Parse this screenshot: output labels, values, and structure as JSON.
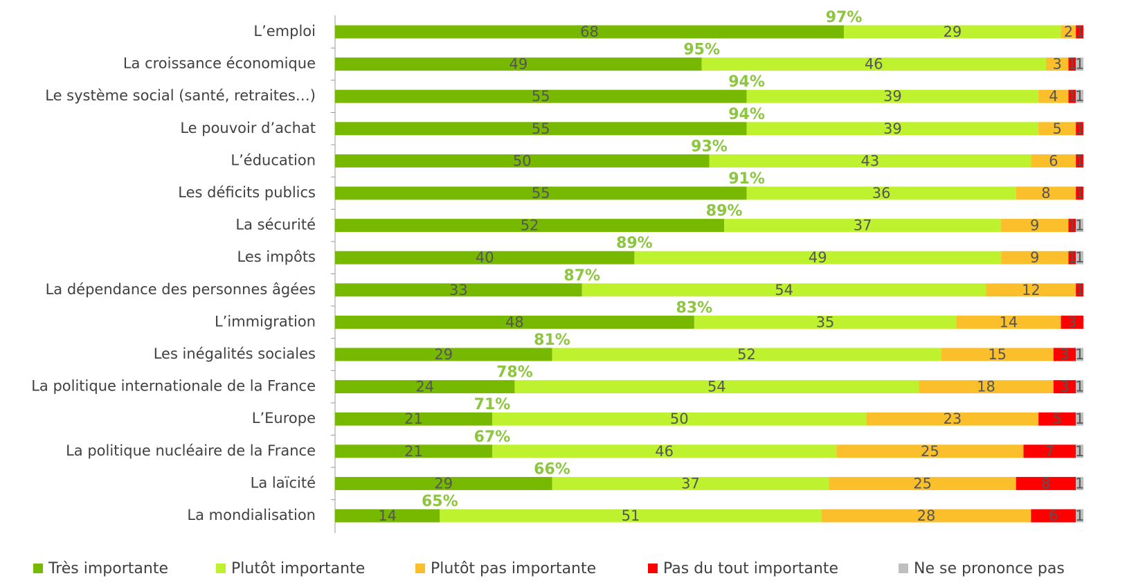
{
  "chart_data": {
    "type": "bar",
    "orientation": "horizontal",
    "categories": [
      "L’emploi",
      "La croissance économique",
      "Le système social (santé, retraites…)",
      "Le pouvoir d’achat",
      "L’éducation",
      "Les déficits publics",
      "La sécurité",
      "Les impôts",
      "La dépendance des personnes âgées",
      "L’immigration",
      "Les inégalités sociales",
      "La politique internationale de la France",
      "L’Europe",
      "La politique nucléaire de la France",
      "La laïcité",
      "La mondialisation"
    ],
    "series": [
      {
        "name": "Très importante",
        "color": "#77b900",
        "values": [
          68,
          49,
          55,
          55,
          50,
          55,
          52,
          40,
          33,
          48,
          29,
          24,
          21,
          21,
          29,
          14
        ]
      },
      {
        "name": "Plutôt importante",
        "color": "#bff22e",
        "values": [
          29,
          46,
          39,
          39,
          43,
          36,
          37,
          49,
          54,
          35,
          52,
          54,
          50,
          46,
          37,
          51
        ]
      },
      {
        "name": "Plutôt pas importante",
        "color": "#fbbf2b",
        "values": [
          2,
          3,
          4,
          5,
          6,
          8,
          9,
          9,
          12,
          14,
          15,
          18,
          23,
          25,
          25,
          28
        ]
      },
      {
        "name": "Pas du tout importante",
        "color": "#ff0000",
        "values": [
          1,
          1,
          1,
          1,
          1,
          1,
          1,
          1,
          1,
          3,
          3,
          3,
          5,
          7,
          8,
          6
        ]
      },
      {
        "name": "Ne se prononce pas",
        "color": "#bfbfbf",
        "values": [
          null,
          1,
          1,
          null,
          null,
          null,
          1,
          1,
          null,
          null,
          1,
          1,
          1,
          1,
          1,
          1
        ]
      }
    ],
    "total_labels": [
      "97%",
      "95%",
      "94%",
      "94%",
      "93%",
      "91%",
      "89%",
      "89%",
      "87%",
      "83%",
      "81%",
      "78%",
      "71%",
      "67%",
      "66%",
      "65%"
    ],
    "xlim": [
      0,
      100
    ]
  }
}
